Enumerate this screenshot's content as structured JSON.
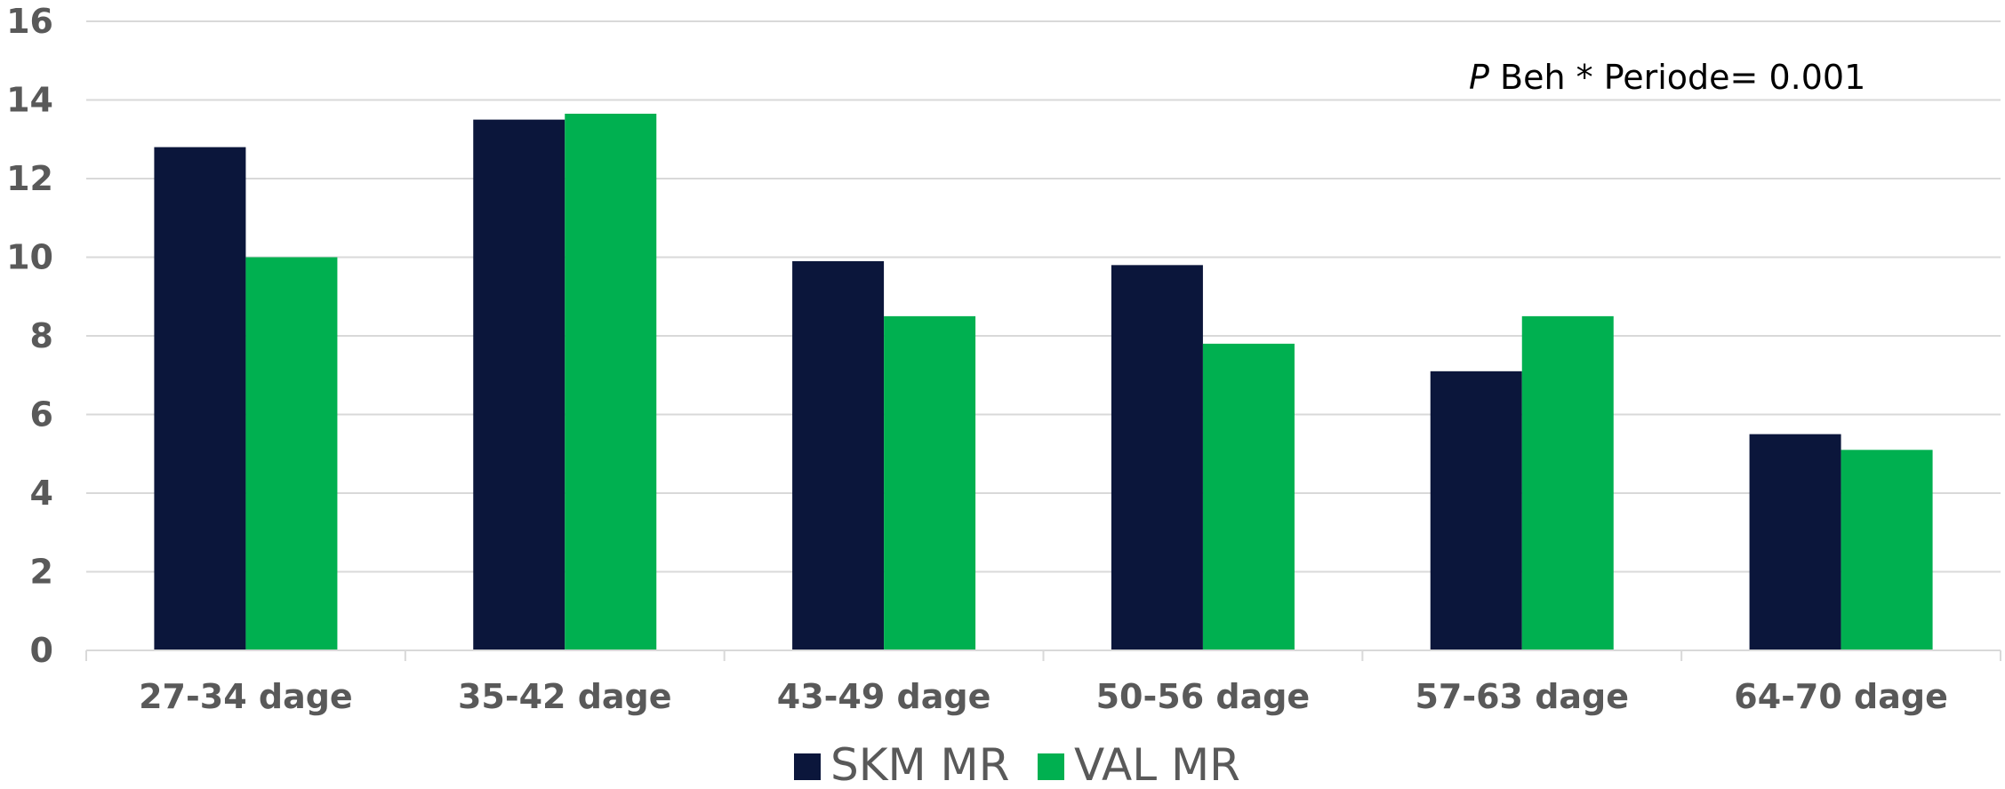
{
  "chart_data": {
    "type": "bar",
    "categories": [
      "27-34 dage",
      "35-42 dage",
      "43-49 dage",
      "50-56 dage",
      "57-63 dage",
      "64-70 dage"
    ],
    "series": [
      {
        "name": "SKM MR",
        "color": "#0b163b",
        "values": [
          12.8,
          13.5,
          9.9,
          9.8,
          7.1,
          5.5
        ]
      },
      {
        "name": "VAL MR",
        "color": "#00b050",
        "values": [
          10.0,
          13.65,
          8.5,
          7.8,
          8.5,
          5.1
        ]
      }
    ],
    "ylim": [
      0,
      16
    ],
    "yticks": [
      0,
      2,
      4,
      6,
      8,
      10,
      12,
      14,
      16
    ],
    "ytick_labels": [
      "0",
      "2",
      "4",
      "6",
      "8",
      "10",
      "12",
      "14",
      "16"
    ],
    "grid": true,
    "legend_position": "bottom",
    "title": "",
    "xlabel": "",
    "ylabel": "",
    "annotation": {
      "italic_part": "P",
      "text_part": " Beh * Periode= 0.001"
    }
  }
}
